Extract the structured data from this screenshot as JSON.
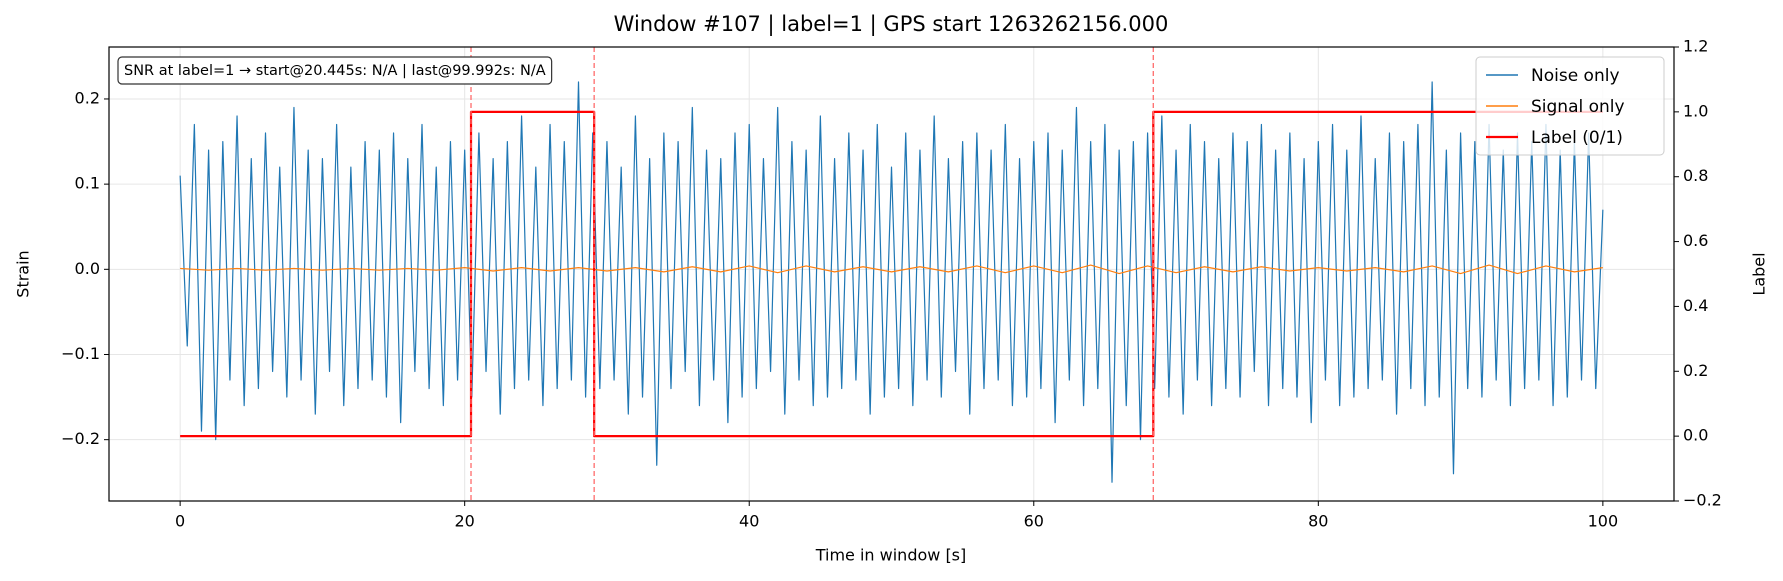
{
  "chart_data": {
    "type": "line",
    "title": "Window #107  |  label=1  |  GPS start 1263262156.000",
    "xlabel": "Time in window [s]",
    "ylabel": "Strain",
    "y2label": "Label",
    "annotation": "SNR at label=1 → start@20.445s: N/A | last@99.992s: N/A",
    "xlim": [
      -5,
      105
    ],
    "xticks": [
      0,
      20,
      40,
      60,
      80,
      100
    ],
    "ylim": [
      -0.272,
      0.261
    ],
    "yticks": [
      {
        "value": -0.2,
        "label": "−0.2"
      },
      {
        "value": -0.1,
        "label": "−0.1"
      },
      {
        "value": 0,
        "label": "0.0"
      },
      0.1,
      0.2
    ],
    "y2lim": [
      -0.2,
      1.2
    ],
    "y2ticks": [
      {
        "value": -0.2,
        "label": "−0.2"
      },
      {
        "value": 0,
        "label": "0.0"
      },
      0.2,
      0.4,
      0.6,
      0.8,
      {
        "value": 1,
        "label": "1.0"
      },
      1.2
    ],
    "grid": true,
    "legend": "upper right",
    "vlines": {
      "values": [
        20.445,
        29.1,
        68.4
      ],
      "color": "#ff6b6b"
    },
    "series": [
      {
        "name": "Noise only",
        "color": "#1f77b4",
        "x": [
          0,
          0.5,
          1,
          1.5,
          2,
          2.5,
          3,
          3.5,
          4,
          4.5,
          5,
          5.5,
          6,
          6.5,
          7,
          7.5,
          8,
          8.5,
          9,
          9.5,
          10,
          10.5,
          11,
          11.5,
          12,
          12.5,
          13,
          13.5,
          14,
          14.5,
          15,
          15.5,
          16,
          16.5,
          17,
          17.5,
          18,
          18.5,
          19,
          19.5,
          20,
          20.5,
          21,
          21.5,
          22,
          22.5,
          23,
          23.5,
          24,
          24.5,
          25,
          25.5,
          26,
          26.5,
          27,
          27.5,
          28,
          28.5,
          29,
          29.5,
          30,
          30.5,
          31,
          31.5,
          32,
          32.5,
          33,
          33.5,
          34,
          34.5,
          35,
          35.5,
          36,
          36.5,
          37,
          37.5,
          38,
          38.5,
          39,
          39.5,
          40,
          40.5,
          41,
          41.5,
          42,
          42.5,
          43,
          43.5,
          44,
          44.5,
          45,
          45.5,
          46,
          46.5,
          47,
          47.5,
          48,
          48.5,
          49,
          49.5,
          50,
          50.5,
          51,
          51.5,
          52,
          52.5,
          53,
          53.5,
          54,
          54.5,
          55,
          55.5,
          56,
          56.5,
          57,
          57.5,
          58,
          58.5,
          59,
          59.5,
          60,
          60.5,
          61,
          61.5,
          62,
          62.5,
          63,
          63.5,
          64,
          64.5,
          65,
          65.5,
          66,
          66.5,
          67,
          67.5,
          68,
          68.5,
          69,
          69.5,
          70,
          70.5,
          71,
          71.5,
          72,
          72.5,
          73,
          73.5,
          74,
          74.5,
          75,
          75.5,
          76,
          76.5,
          77,
          77.5,
          78,
          78.5,
          79,
          79.5,
          80,
          80.5,
          81,
          81.5,
          82,
          82.5,
          83,
          83.5,
          84,
          84.5,
          85,
          85.5,
          86,
          86.5,
          87,
          87.5,
          88,
          88.5,
          89,
          89.5,
          90,
          90.5,
          91,
          91.5,
          92,
          92.5,
          93,
          93.5,
          94,
          94.5,
          95,
          95.5,
          96,
          96.5,
          97,
          97.5,
          98,
          98.5,
          99,
          99.5,
          100
        ],
        "values": [
          0.11,
          -0.09,
          0.17,
          -0.19,
          0.14,
          -0.2,
          0.15,
          -0.13,
          0.18,
          -0.16,
          0.13,
          -0.14,
          0.16,
          -0.12,
          0.12,
          -0.15,
          0.19,
          -0.13,
          0.14,
          -0.17,
          0.13,
          -0.12,
          0.17,
          -0.16,
          0.12,
          -0.14,
          0.15,
          -0.13,
          0.14,
          -0.15,
          0.16,
          -0.18,
          0.13,
          -0.12,
          0.17,
          -0.14,
          0.12,
          -0.16,
          0.15,
          -0.13,
          0.14,
          -0.15,
          0.16,
          -0.12,
          0.13,
          -0.17,
          0.15,
          -0.14,
          0.18,
          -0.13,
          0.12,
          -0.16,
          0.17,
          -0.14,
          0.15,
          -0.13,
          0.22,
          -0.15,
          0.16,
          -0.14,
          0.15,
          -0.13,
          0.12,
          -0.17,
          0.18,
          -0.15,
          0.13,
          -0.23,
          0.16,
          -0.14,
          0.15,
          -0.12,
          0.19,
          -0.16,
          0.14,
          -0.13,
          0.13,
          -0.18,
          0.16,
          -0.15,
          0.17,
          -0.14,
          0.13,
          -0.12,
          0.19,
          -0.17,
          0.15,
          -0.13,
          0.14,
          -0.16,
          0.18,
          -0.15,
          0.13,
          -0.14,
          0.16,
          -0.13,
          0.14,
          -0.17,
          0.17,
          -0.15,
          0.12,
          -0.14,
          0.16,
          -0.16,
          0.14,
          -0.13,
          0.18,
          -0.15,
          0.13,
          -0.12,
          0.15,
          -0.17,
          0.16,
          -0.14,
          0.14,
          -0.13,
          0.17,
          -0.16,
          0.13,
          -0.15,
          0.15,
          -0.14,
          0.16,
          -0.18,
          0.14,
          -0.13,
          0.19,
          -0.16,
          0.15,
          -0.14,
          0.17,
          -0.25,
          0.14,
          -0.16,
          0.15,
          -0.2,
          0.16,
          -0.14,
          0.18,
          -0.15,
          0.14,
          -0.17,
          0.17,
          -0.13,
          0.15,
          -0.16,
          0.13,
          -0.14,
          0.16,
          -0.15,
          0.15,
          -0.12,
          0.17,
          -0.16,
          0.14,
          -0.14,
          0.16,
          -0.15,
          0.13,
          -0.18,
          0.15,
          -0.13,
          0.17,
          -0.16,
          0.14,
          -0.15,
          0.18,
          -0.14,
          0.13,
          -0.13,
          0.16,
          -0.17,
          0.15,
          -0.14,
          0.17,
          -0.16,
          0.22,
          -0.15,
          0.14,
          -0.24,
          0.16,
          -0.14,
          0.15,
          -0.15,
          0.17,
          -0.13,
          0.14,
          -0.16,
          0.16,
          -0.14,
          0.15,
          -0.13,
          0.17,
          -0.16,
          0.14,
          -0.15,
          0.15,
          -0.13,
          0.16,
          -0.14,
          0.07
        ]
      },
      {
        "name": "Signal only",
        "color": "#ff7f0e",
        "x": [
          0,
          2,
          4,
          6,
          8,
          10,
          12,
          14,
          16,
          18,
          20,
          22,
          24,
          26,
          28,
          30,
          32,
          34,
          36,
          38,
          40,
          42,
          44,
          46,
          48,
          50,
          52,
          54,
          56,
          58,
          60,
          62,
          64,
          66,
          68,
          70,
          72,
          74,
          76,
          78,
          80,
          82,
          84,
          86,
          88,
          90,
          92,
          94,
          96,
          98,
          100
        ],
        "values": [
          0.001,
          -0.001,
          0.001,
          -0.001,
          0.001,
          -0.001,
          0.001,
          -0.001,
          0.001,
          -0.001,
          0.002,
          -0.002,
          0.002,
          -0.002,
          0.002,
          -0.002,
          0.002,
          -0.003,
          0.003,
          -0.003,
          0.004,
          -0.004,
          0.004,
          -0.003,
          0.003,
          -0.003,
          0.003,
          -0.003,
          0.004,
          -0.004,
          0.004,
          -0.004,
          0.005,
          -0.005,
          0.004,
          -0.004,
          0.003,
          -0.003,
          0.003,
          -0.002,
          0.002,
          -0.002,
          0.002,
          -0.003,
          0.004,
          -0.005,
          0.005,
          -0.005,
          0.004,
          -0.003,
          0.002
        ]
      },
      {
        "name": "Label (0/1)",
        "color": "#ff0000",
        "axis": "y2",
        "x": [
          0,
          20.445,
          20.445,
          29.1,
          29.1,
          68.4,
          68.4,
          100
        ],
        "values": [
          0,
          0,
          1,
          1,
          0,
          0,
          1,
          1
        ]
      }
    ]
  }
}
